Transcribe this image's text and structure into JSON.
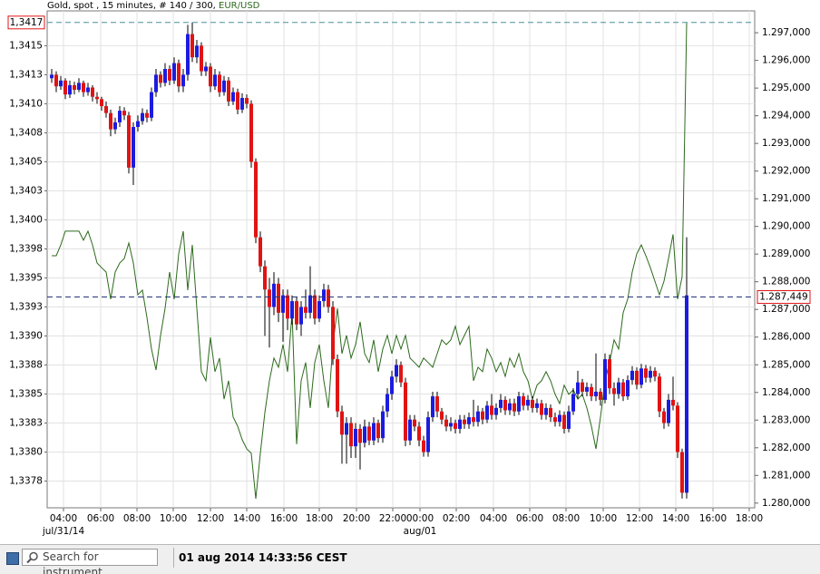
{
  "chart_data": {
    "type": "candlestick",
    "title": "Gold, spot , 15 minutes, # 140 / 300,",
    "up_color": "#1c1ce0",
    "down_color": "#e01414",
    "wick_color": "#000000",
    "ohlc": [
      [
        1.34122,
        1.3413,
        1.34118,
        1.34125
      ],
      [
        1.34125,
        1.34128,
        1.3411,
        1.34115
      ],
      [
        1.34115,
        1.34124,
        1.34112,
        1.3412
      ],
      [
        1.3412,
        1.34122,
        1.34104,
        1.34108
      ],
      [
        1.34108,
        1.3412,
        1.34105,
        1.34116
      ],
      [
        1.34116,
        1.34119,
        1.34108,
        1.34112
      ],
      [
        1.34112,
        1.34122,
        1.3411,
        1.34118
      ],
      [
        1.34118,
        1.3412,
        1.34106,
        1.3411
      ],
      [
        1.3411,
        1.34118,
        1.34107,
        1.34114
      ],
      [
        1.34114,
        1.34116,
        1.34102,
        1.34106
      ],
      [
        1.34106,
        1.3411,
        1.341,
        1.34104
      ],
      [
        1.34104,
        1.34106,
        1.34094,
        1.34098
      ],
      [
        1.34098,
        1.34102,
        1.34088,
        1.34092
      ],
      [
        1.34092,
        1.34095,
        1.34072,
        1.34078
      ],
      [
        1.34078,
        1.34088,
        1.34074,
        1.34084
      ],
      [
        1.34084,
        1.34098,
        1.3408,
        1.34094
      ],
      [
        1.34094,
        1.34097,
        1.34086,
        1.3409
      ],
      [
        1.3409,
        1.34093,
        1.3404,
        1.34045
      ],
      [
        1.34045,
        1.34084,
        1.3403,
        1.3408
      ],
      [
        1.3408,
        1.3409,
        1.34076,
        1.34085
      ],
      [
        1.34085,
        1.34096,
        1.34082,
        1.34092
      ],
      [
        1.34092,
        1.34095,
        1.34084,
        1.34088
      ],
      [
        1.34088,
        1.34114,
        1.34085,
        1.3411
      ],
      [
        1.3411,
        1.3413,
        1.34106,
        1.34125
      ],
      [
        1.34125,
        1.34128,
        1.34114,
        1.34118
      ],
      [
        1.34118,
        1.34135,
        1.34115,
        1.3413
      ],
      [
        1.3413,
        1.34133,
        1.34116,
        1.3412
      ],
      [
        1.3412,
        1.3414,
        1.34117,
        1.34135
      ],
      [
        1.34135,
        1.34138,
        1.3411,
        1.34115
      ],
      [
        1.34115,
        1.3413,
        1.3411,
        1.34125
      ],
      [
        1.34125,
        1.34168,
        1.3412,
        1.3416
      ],
      [
        1.3416,
        1.3417,
        1.34136,
        1.3414
      ],
      [
        1.3414,
        1.34155,
        1.34135,
        1.3415
      ],
      [
        1.3415,
        1.34153,
        1.34124,
        1.34128
      ],
      [
        1.34128,
        1.34136,
        1.34124,
        1.34132
      ],
      [
        1.34132,
        1.34135,
        1.3411,
        1.34115
      ],
      [
        1.34115,
        1.3413,
        1.34112,
        1.34125
      ],
      [
        1.34125,
        1.34128,
        1.34106,
        1.3411
      ],
      [
        1.3411,
        1.34124,
        1.34107,
        1.3412
      ],
      [
        1.3412,
        1.34123,
        1.34098,
        1.34102
      ],
      [
        1.34102,
        1.34114,
        1.34099,
        1.3411
      ],
      [
        1.3411,
        1.34113,
        1.34091,
        1.34095
      ],
      [
        1.34095,
        1.34109,
        1.34092,
        1.34105
      ],
      [
        1.34105,
        1.34108,
        1.34096,
        1.341
      ],
      [
        1.341,
        1.34103,
        1.34045,
        1.3405
      ],
      [
        1.3405,
        1.34053,
        1.3398,
        1.33985
      ],
      [
        1.33985,
        1.3399,
        1.33955,
        1.3396
      ],
      [
        1.3396,
        1.33965,
        1.339,
        1.3394
      ],
      [
        1.3394,
        1.3395,
        1.3389,
        1.33925
      ],
      [
        1.33925,
        1.33955,
        1.33918,
        1.33945
      ],
      [
        1.33945,
        1.3395,
        1.33912,
        1.3392
      ],
      [
        1.3392,
        1.3394,
        1.33895,
        1.33935
      ],
      [
        1.33935,
        1.3394,
        1.33905,
        1.33915
      ],
      [
        1.33915,
        1.33935,
        1.3391,
        1.3393
      ],
      [
        1.3393,
        1.33934,
        1.33905,
        1.3391
      ],
      [
        1.3391,
        1.3393,
        1.339,
        1.33925
      ],
      [
        1.33925,
        1.3394,
        1.33915,
        1.3392
      ],
      [
        1.3392,
        1.3396,
        1.33915,
        1.33935
      ],
      [
        1.33935,
        1.3394,
        1.3391,
        1.33915
      ],
      [
        1.33915,
        1.33935,
        1.33912,
        1.3393
      ],
      [
        1.3393,
        1.33945,
        1.33925,
        1.3394
      ],
      [
        1.3394,
        1.33944,
        1.3392,
        1.33925
      ],
      [
        1.33925,
        1.3393,
        1.33875,
        1.3388
      ],
      [
        1.3388,
        1.33884,
        1.3383,
        1.33835
      ],
      [
        1.33835,
        1.3384,
        1.3379,
        1.33815
      ],
      [
        1.33815,
        1.3383,
        1.3379,
        1.33825
      ],
      [
        1.33825,
        1.3383,
        1.33795,
        1.33805
      ],
      [
        1.33805,
        1.33825,
        1.33795,
        1.3382
      ],
      [
        1.3382,
        1.33824,
        1.33785,
        1.33808
      ],
      [
        1.33808,
        1.33828,
        1.33804,
        1.33822
      ],
      [
        1.33822,
        1.33826,
        1.33806,
        1.3381
      ],
      [
        1.3381,
        1.3383,
        1.33806,
        1.33825
      ],
      [
        1.33825,
        1.33828,
        1.33808,
        1.33812
      ],
      [
        1.33812,
        1.3384,
        1.33808,
        1.33835
      ],
      [
        1.33835,
        1.33855,
        1.3383,
        1.3385
      ],
      [
        1.3385,
        1.3387,
        1.33845,
        1.33865
      ],
      [
        1.33865,
        1.3388,
        1.3386,
        1.33875
      ],
      [
        1.33875,
        1.33878,
        1.33856,
        1.3386
      ],
      [
        1.3386,
        1.33864,
        1.33805,
        1.3381
      ],
      [
        1.3381,
        1.33832,
        1.33806,
        1.33828
      ],
      [
        1.33828,
        1.33832,
        1.33818,
        1.33822
      ],
      [
        1.33822,
        1.33826,
        1.33805,
        1.3381
      ],
      [
        1.3381,
        1.33814,
        1.33796,
        1.338
      ],
      [
        1.338,
        1.33835,
        1.33796,
        1.3383
      ],
      [
        1.3383,
        1.33852,
        1.33826,
        1.33848
      ],
      [
        1.33848,
        1.33852,
        1.3383,
        1.33835
      ],
      [
        1.33835,
        1.33838,
        1.33824,
        1.33828
      ],
      [
        1.33828,
        1.33832,
        1.33818,
        1.33822
      ],
      [
        1.33822,
        1.3383,
        1.33818,
        1.33825
      ],
      [
        1.33825,
        1.33828,
        1.33816,
        1.3382
      ],
      [
        1.3382,
        1.33832,
        1.33816,
        1.33828
      ],
      [
        1.33828,
        1.33832,
        1.3382,
        1.33824
      ],
      [
        1.33824,
        1.33834,
        1.3382,
        1.3383
      ],
      [
        1.3383,
        1.33845,
        1.33822,
        1.33826
      ],
      [
        1.33826,
        1.3384,
        1.33822,
        1.33835
      ],
      [
        1.33835,
        1.33838,
        1.33824,
        1.33828
      ],
      [
        1.33828,
        1.33844,
        1.33825,
        1.3384
      ],
      [
        1.3384,
        1.3385,
        1.33828,
        1.33832
      ],
      [
        1.33832,
        1.33842,
        1.33828,
        1.33838
      ],
      [
        1.33838,
        1.3385,
        1.33834,
        1.33845
      ],
      [
        1.33845,
        1.33848,
        1.33832,
        1.33836
      ],
      [
        1.33836,
        1.33846,
        1.33832,
        1.33842
      ],
      [
        1.33842,
        1.33846,
        1.33831,
        1.33835
      ],
      [
        1.33835,
        1.33852,
        1.33832,
        1.33848
      ],
      [
        1.33848,
        1.33851,
        1.33836,
        1.3384
      ],
      [
        1.3384,
        1.33849,
        1.33836,
        1.33845
      ],
      [
        1.33845,
        1.33848,
        1.33834,
        1.33838
      ],
      [
        1.33838,
        1.33846,
        1.33834,
        1.33842
      ],
      [
        1.33842,
        1.33845,
        1.33828,
        1.33832
      ],
      [
        1.33832,
        1.33842,
        1.33828,
        1.33838
      ],
      [
        1.33838,
        1.33841,
        1.33826,
        1.3383
      ],
      [
        1.3383,
        1.33834,
        1.33822,
        1.33826
      ],
      [
        1.33826,
        1.33836,
        1.33822,
        1.33832
      ],
      [
        1.33832,
        1.33835,
        1.33816,
        1.3382
      ],
      [
        1.3382,
        1.3384,
        1.33817,
        1.33835
      ],
      [
        1.33835,
        1.33855,
        1.33832,
        1.3385
      ],
      [
        1.3385,
        1.3387,
        1.33846,
        1.3386
      ],
      [
        1.3386,
        1.33863,
        1.33848,
        1.33852
      ],
      [
        1.33852,
        1.3386,
        1.33848,
        1.33856
      ],
      [
        1.33856,
        1.33859,
        1.33844,
        1.33848
      ],
      [
        1.33848,
        1.33885,
        1.33844,
        1.33852
      ],
      [
        1.33852,
        1.33855,
        1.3384,
        1.33845
      ],
      [
        1.33845,
        1.33885,
        1.33842,
        1.3388
      ],
      [
        1.3388,
        1.33884,
        1.3385,
        1.33855
      ],
      [
        1.33855,
        1.3386,
        1.3384,
        1.3385
      ],
      [
        1.3385,
        1.33864,
        1.33846,
        1.3386
      ],
      [
        1.3386,
        1.33863,
        1.33844,
        1.33848
      ],
      [
        1.33848,
        1.33866,
        1.33845,
        1.33862
      ],
      [
        1.33862,
        1.33874,
        1.33858,
        1.3387
      ],
      [
        1.3387,
        1.33873,
        1.33854,
        1.33858
      ],
      [
        1.33858,
        1.33876,
        1.33855,
        1.33872
      ],
      [
        1.33872,
        1.33875,
        1.3386,
        1.33864
      ],
      [
        1.33864,
        1.33874,
        1.3386,
        1.3387
      ],
      [
        1.3387,
        1.33873,
        1.33861,
        1.33865
      ],
      [
        1.33865,
        1.33868,
        1.3383,
        1.33835
      ],
      [
        1.33835,
        1.33838,
        1.3382,
        1.33825
      ],
      [
        1.33825,
        1.3385,
        1.33822,
        1.33845
      ],
      [
        1.33845,
        1.33865,
        1.33836,
        1.3384
      ],
      [
        1.3384,
        1.33843,
        1.33795,
        1.338
      ],
      [
        1.338,
        1.33803,
        1.3376,
        1.33765
      ],
      [
        1.33765,
        1.33985,
        1.3376,
        1.33935
      ]
    ],
    "series": [
      {
        "name": "EUR/USD",
        "color": "#2c6a1c",
        "axis": "y2",
        "values": [
          1.28894,
          1.28894,
          1.28933,
          1.28983,
          1.28983,
          1.28983,
          1.28983,
          1.2895,
          1.28983,
          1.28933,
          1.28868,
          1.28851,
          1.28835,
          1.28737,
          1.28835,
          1.28868,
          1.28884,
          1.2894,
          1.28868,
          1.28753,
          1.2877,
          1.28671,
          1.28557,
          1.28481,
          1.28606,
          1.28704,
          1.28835,
          1.28737,
          1.28901,
          1.28983,
          1.2877,
          1.28933,
          1.28704,
          1.28475,
          1.28442,
          1.28599,
          1.28475,
          1.28524,
          1.28376,
          1.28442,
          1.28311,
          1.28278,
          1.28229,
          1.28196,
          1.2818,
          1.28016,
          1.2818,
          1.28327,
          1.28442,
          1.28524,
          1.28491,
          1.28573,
          1.28475,
          1.28688,
          1.28213,
          1.28442,
          1.28508,
          1.28344,
          1.28508,
          1.28573,
          1.28442,
          1.28344,
          1.28573,
          1.28704,
          1.2854,
          1.28606,
          1.28524,
          1.28573,
          1.28655,
          1.2854,
          1.28508,
          1.2859,
          1.28475,
          1.28557,
          1.28606,
          1.2854,
          1.28606,
          1.28557,
          1.28606,
          1.28524,
          1.28508,
          1.28491,
          1.28524,
          1.28508,
          1.28491,
          1.2854,
          1.2859,
          1.28573,
          1.2859,
          1.28639,
          1.28573,
          1.28606,
          1.28639,
          1.28442,
          1.28491,
          1.28475,
          1.28557,
          1.28524,
          1.28475,
          1.28508,
          1.28458,
          1.28524,
          1.28491,
          1.2854,
          1.28475,
          1.28442,
          1.28376,
          1.28426,
          1.28442,
          1.28475,
          1.28442,
          1.28393,
          1.2836,
          1.28426,
          1.28393,
          1.28409,
          1.28376,
          1.28393,
          1.28344,
          1.28278,
          1.28196,
          1.28311,
          1.28442,
          1.28508,
          1.2859,
          1.28557,
          1.28688,
          1.28737,
          1.28835,
          1.28901,
          1.28933,
          1.28894,
          1.28851,
          1.28802,
          1.28753,
          1.28802,
          1.28884,
          1.28971,
          1.28737,
          1.28818,
          1.29736
        ]
      }
    ],
    "xlim": [
      -1,
      155
    ],
    "xticks": [
      {
        "value": 2.6,
        "label": "04:00"
      },
      {
        "value": 10.8,
        "label": "06:00"
      },
      {
        "value": 18.8,
        "label": "08:00"
      },
      {
        "value": 26.8,
        "label": "10:00"
      },
      {
        "value": 35,
        "label": "12:00"
      },
      {
        "value": 43,
        "label": "14:00"
      },
      {
        "value": 51.2,
        "label": "16:00"
      },
      {
        "value": 59,
        "label": "18:00"
      },
      {
        "value": 67.2,
        "label": "20:00"
      },
      {
        "value": 75.2,
        "label": "22:00"
      },
      {
        "value": 81.2,
        "label": "00:00"
      },
      {
        "value": 89.2,
        "label": "02:00"
      },
      {
        "value": 97.4,
        "label": "04:00"
      },
      {
        "value": 105.4,
        "label": "06:00"
      },
      {
        "value": 113.4,
        "label": "08:00"
      },
      {
        "value": 121.6,
        "label": "10:00"
      },
      {
        "value": 129.6,
        "label": "12:00"
      },
      {
        "value": 137.6,
        "label": "14:00"
      },
      {
        "value": 145.8,
        "label": "16:00"
      },
      {
        "value": 153.8,
        "label": "18:00"
      }
    ],
    "date_labels": [
      {
        "value": 2.6,
        "label": "jul/31/14"
      },
      {
        "value": 81.2,
        "label": "aug/01"
      }
    ],
    "ylim": [
      1.33752,
      1.3418
    ],
    "yticks": [
      {
        "value": 1.3415,
        "label": "1,3415"
      },
      {
        "value": 1.34125,
        "label": "1,3413"
      },
      {
        "value": 1.341,
        "label": "1,3410"
      },
      {
        "value": 1.34075,
        "label": "1,3408"
      },
      {
        "value": 1.3405,
        "label": "1,3405"
      },
      {
        "value": 1.34025,
        "label": "1,3403"
      },
      {
        "value": 1.34,
        "label": "1,3400"
      },
      {
        "value": 1.33975,
        "label": "1,3398"
      },
      {
        "value": 1.3395,
        "label": "1,3395"
      },
      {
        "value": 1.33925,
        "label": "1,3393"
      },
      {
        "value": 1.339,
        "label": "1,3390"
      },
      {
        "value": 1.33875,
        "label": "1,3388"
      },
      {
        "value": 1.3385,
        "label": "1,3385"
      },
      {
        "value": 1.33825,
        "label": "1,3383"
      },
      {
        "value": 1.338,
        "label": "1,3380"
      },
      {
        "value": 1.33775,
        "label": "1,3378"
      }
    ],
    "y2lim": [
      1.27983,
      1.29779
    ],
    "y2ticks": [
      {
        "value": 1.297,
        "label": "1.297,000"
      },
      {
        "value": 1.296,
        "label": "1.296,000"
      },
      {
        "value": 1.295,
        "label": "1.295,000"
      },
      {
        "value": 1.294,
        "label": "1.294,000"
      },
      {
        "value": 1.293,
        "label": "1.293,000"
      },
      {
        "value": 1.292,
        "label": "1.292,000"
      },
      {
        "value": 1.291,
        "label": "1.291,000"
      },
      {
        "value": 1.29,
        "label": "1.290,000"
      },
      {
        "value": 1.289,
        "label": "1.289,000"
      },
      {
        "value": 1.288,
        "label": "1.288,000"
      },
      {
        "value": 1.287,
        "label": "1.287,000"
      },
      {
        "value": 1.286,
        "label": "1.286,000"
      },
      {
        "value": 1.285,
        "label": "1.285,000"
      },
      {
        "value": 1.284,
        "label": "1.284,000"
      },
      {
        "value": 1.283,
        "label": "1.283,000"
      },
      {
        "value": 1.282,
        "label": "1.282,000"
      },
      {
        "value": 1.281,
        "label": "1.281,000"
      },
      {
        "value": 1.28,
        "label": "1.280,000"
      }
    ],
    "grid": true,
    "price_markers": [
      {
        "value": 1.3417,
        "label": "1,3417",
        "axis": "y",
        "color": "#4a8f9a"
      },
      {
        "value": 1.287449,
        "label": "1.287,449",
        "axis": "y2",
        "color": "#24337a"
      }
    ]
  },
  "status_bar": {
    "search_placeholder": "Search for instrument",
    "timestamp": "01 aug 2014 14:33:56 CEST"
  }
}
